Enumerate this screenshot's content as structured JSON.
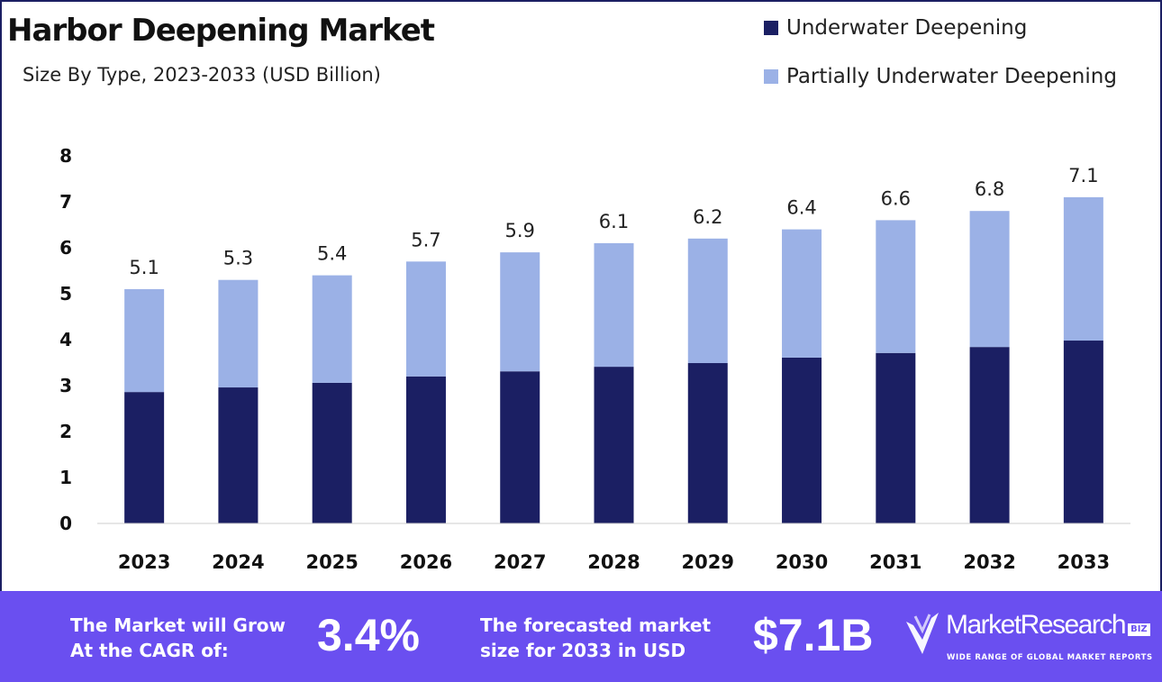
{
  "chart_data": {
    "type": "bar",
    "stacked": true,
    "title": "Harbor Deepening Market",
    "subtitle": "Size By Type, 2023-2033 (USD Billion)",
    "categories": [
      "2023",
      "2024",
      "2025",
      "2026",
      "2027",
      "2028",
      "2029",
      "2030",
      "2031",
      "2032",
      "2033"
    ],
    "series": [
      {
        "name": "Underwater Deepening",
        "color": "#1b1f63",
        "values": [
          2.86,
          2.96,
          3.06,
          3.2,
          3.31,
          3.41,
          3.49,
          3.61,
          3.71,
          3.84,
          3.98
        ]
      },
      {
        "name": "Partially Underwater Deepening",
        "color": "#9bb1e6",
        "values": [
          2.24,
          2.34,
          2.34,
          2.5,
          2.59,
          2.69,
          2.71,
          2.79,
          2.89,
          2.96,
          3.12
        ]
      }
    ],
    "totals": [
      "5.1",
      "5.3",
      "5.4",
      "5.7",
      "5.9",
      "6.1",
      "6.2",
      "6.4",
      "6.6",
      "6.8",
      "7.1"
    ],
    "yticks": [
      "0",
      "1",
      "2",
      "3",
      "4",
      "5",
      "6",
      "7",
      "8"
    ],
    "ylim": [
      0,
      8
    ],
    "grid": false,
    "legend": "top-right"
  },
  "footer": {
    "cagr_label_1": "The Market will Grow",
    "cagr_label_2": "At the CAGR of:",
    "cagr_value": "3.4%",
    "forecast_label_1": "The forecasted market",
    "forecast_label_2": "size for 2033 in USD",
    "forecast_value": "$7.1B",
    "logo_text": "MarketResearch",
    "logo_badge": "BIZ",
    "logo_tagline": "WIDE RANGE OF GLOBAL MARKET REPORTS",
    "color": "#6a4ff0"
  }
}
